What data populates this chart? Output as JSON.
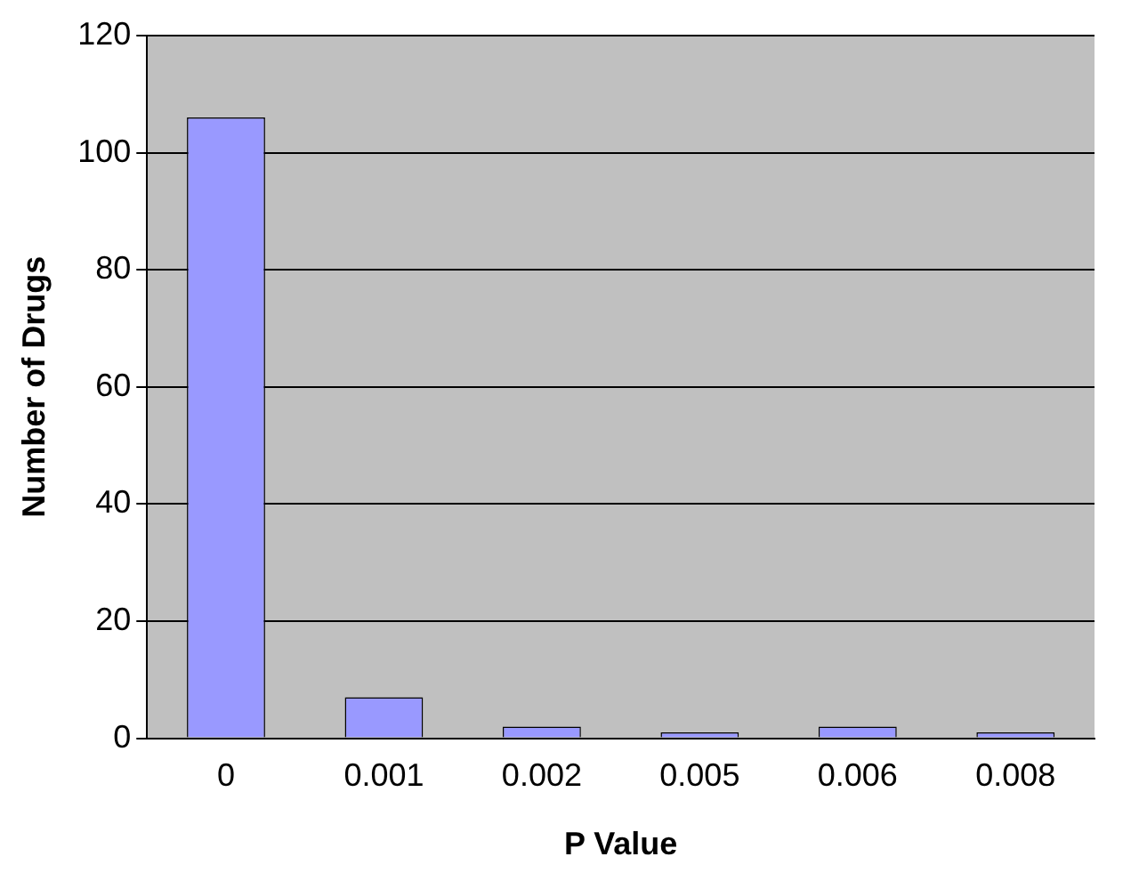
{
  "chart_data": {
    "type": "bar",
    "xlabel": "P Value",
    "ylabel": "Number of Drugs",
    "categories": [
      "0",
      "0.001",
      "0.002",
      "0.005",
      "0.006",
      "0.008"
    ],
    "values": [
      106,
      7,
      2,
      1,
      2,
      1
    ],
    "color": "#9999ff",
    "ylim": [
      0,
      120
    ],
    "yticks": [
      0,
      20,
      40,
      60,
      80,
      100,
      120
    ],
    "grid": "y",
    "legend": false
  }
}
